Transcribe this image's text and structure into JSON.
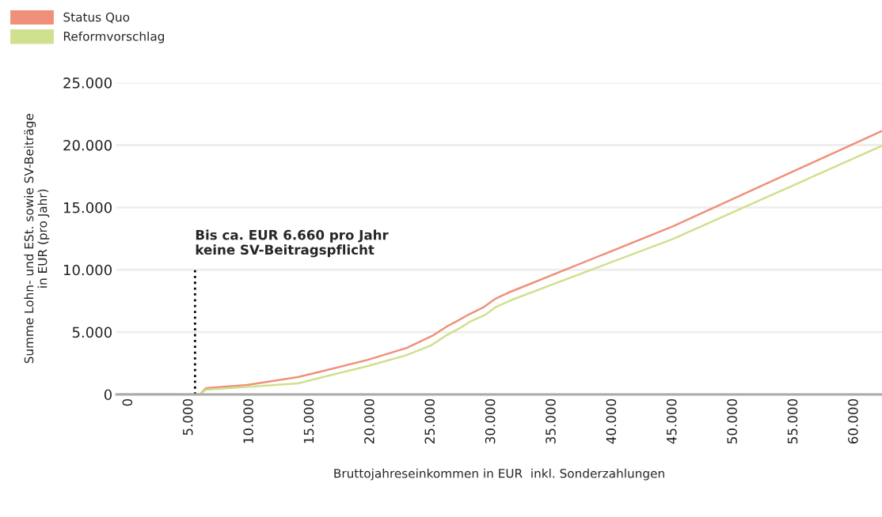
{
  "chart_data": {
    "type": "line",
    "xlabel": "Bruttojahreseinkommen in EUR  inkl. Sonderzahlungen",
    "ylabel": "Summe Lohn- und ESt. sowie SV-Beiträge\nin EUR (pro Jahr)",
    "xlim": [
      -1000,
      62300
    ],
    "ylim": [
      0,
      25000
    ],
    "xticks": [
      0,
      {
        "value": 5000,
        "label": "5.000"
      },
      {
        "value": 10000,
        "label": "10.000"
      },
      {
        "value": 15000,
        "label": "15.000"
      },
      {
        "value": 20000,
        "label": "20.000"
      },
      {
        "value": 25000,
        "label": "25.000"
      },
      {
        "value": 30000,
        "label": "30.000"
      },
      {
        "value": 35000,
        "label": "35.000"
      },
      {
        "value": 40000,
        "label": "40.000"
      },
      {
        "value": 45000,
        "label": "45.000"
      },
      {
        "value": 50000,
        "label": "50.000"
      },
      {
        "value": 55000,
        "label": "55.000"
      },
      {
        "value": 60000,
        "label": "60.000"
      }
    ],
    "yticks": [
      0,
      {
        "value": 5000,
        "label": "5.000"
      },
      {
        "value": 10000,
        "label": "10.000"
      },
      {
        "value": 15000,
        "label": "15.000"
      },
      {
        "value": 20000,
        "label": "20.000"
      },
      {
        "value": 25000,
        "label": "25.000"
      }
    ],
    "grid": "y",
    "legend": "top left",
    "series": [
      {
        "name": "Status Quo",
        "color": "#f0907a",
        "x": [
          -1000,
          5900,
          6400,
          9800,
          14000,
          15900,
          19800,
          23000,
          25200,
          26300,
          27200,
          28200,
          29300,
          30300,
          31400,
          45000,
          62300
        ],
        "values": [
          0,
          0,
          500,
          760,
          1400,
          1840,
          2780,
          3730,
          4750,
          5440,
          5900,
          6450,
          6960,
          7660,
          8160,
          13480,
          21140
        ]
      },
      {
        "name": "Reformvorschlag",
        "color": "#cfe08e",
        "x": [
          -1000,
          5900,
          6400,
          14000,
          16600,
          19800,
          23000,
          25000,
          26300,
          27500,
          28200,
          29500,
          30400,
          31700,
          45000,
          62300
        ],
        "values": [
          0,
          0,
          380,
          890,
          1520,
          2280,
          3160,
          3920,
          4750,
          5380,
          5820,
          6390,
          7030,
          7590,
          12470,
          19940
        ]
      }
    ],
    "ref_lines": [
      {
        "axis": "x",
        "value": 5500,
        "label": "Bis ca. EUR 6.660 pro Jahr\nkeine SV-Beitragspflicht",
        "color": "#000000",
        "line_style": "dotted"
      }
    ]
  }
}
